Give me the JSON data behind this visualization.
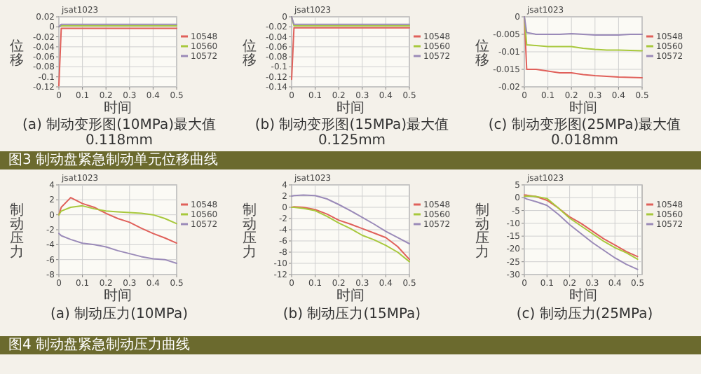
{
  "chart_data": [
    {
      "type": "line",
      "title": "(a) 制动变形图(10MPa)最大值0.118mm",
      "xlabel": "时间",
      "ylabel": "位移",
      "annotations": [
        "jsat1023"
      ],
      "x": [
        0,
        0.01,
        0.05,
        0.1,
        0.15,
        0.2,
        0.25,
        0.3,
        0.35,
        0.4,
        0.45,
        0.5
      ],
      "xlim": [
        0,
        0.5
      ],
      "xticks": [
        0,
        0.1,
        0.2,
        0.3,
        0.4,
        0.5
      ],
      "ylim": [
        -0.12,
        0.02
      ],
      "yticks": [
        -0.12,
        -0.1,
        -0.08,
        -0.06,
        -0.04,
        -0.02,
        0,
        0.02
      ],
      "grid": true,
      "legend": "right",
      "series": [
        {
          "name": "10548",
          "color": "#e0605a",
          "values": [
            -0.118,
            -0.003,
            -0.003,
            -0.003,
            -0.003,
            -0.003,
            -0.003,
            -0.003,
            -0.003,
            -0.003,
            -0.003,
            -0.003
          ]
        },
        {
          "name": "10560",
          "color": "#a8c83c",
          "values": [
            0,
            0.002,
            0.002,
            0.002,
            0.002,
            0.002,
            0.002,
            0.002,
            0.002,
            0.002,
            0.002,
            0.002
          ]
        },
        {
          "name": "10572",
          "color": "#9a8ab8",
          "values": [
            0,
            0.005,
            0.005,
            0.005,
            0.005,
            0.005,
            0.005,
            0.005,
            0.005,
            0.005,
            0.005,
            0.005
          ]
        }
      ]
    },
    {
      "type": "line",
      "title": "(b) 制动变形图(15MPa)最大值0.125mm",
      "xlabel": "时间",
      "ylabel": "位移",
      "annotations": [
        "jsat1023"
      ],
      "x": [
        0,
        0.01,
        0.05,
        0.1,
        0.15,
        0.2,
        0.25,
        0.3,
        0.35,
        0.4,
        0.45,
        0.5
      ],
      "xlim": [
        0,
        0.5
      ],
      "xticks": [
        0,
        0.1,
        0.2,
        0.3,
        0.4,
        0.5
      ],
      "ylim": [
        -0.14,
        0
      ],
      "yticks": [
        -0.14,
        -0.12,
        -0.1,
        -0.08,
        -0.06,
        -0.04,
        -0.02,
        0
      ],
      "grid": true,
      "legend": "right",
      "series": [
        {
          "name": "10548",
          "color": "#e0605a",
          "values": [
            -0.125,
            -0.022,
            -0.022,
            -0.022,
            -0.022,
            -0.022,
            -0.022,
            -0.022,
            -0.022,
            -0.022,
            -0.022,
            -0.022
          ]
        },
        {
          "name": "10560",
          "color": "#a8c83c",
          "values": [
            0,
            -0.018,
            -0.018,
            -0.018,
            -0.018,
            -0.018,
            -0.018,
            -0.018,
            -0.018,
            -0.018,
            -0.018,
            -0.018
          ]
        },
        {
          "name": "10572",
          "color": "#9a8ab8",
          "values": [
            0,
            -0.015,
            -0.015,
            -0.015,
            -0.015,
            -0.015,
            -0.015,
            -0.015,
            -0.015,
            -0.015,
            -0.015,
            -0.015
          ]
        }
      ]
    },
    {
      "type": "line",
      "title": "(c) 制动变形图(25MPa)最大值0.018mm",
      "xlabel": "时间",
      "ylabel": "位移",
      "annotations": [
        "jsat1023",
        "图3 制动盘紧急制动单元位移曲线"
      ],
      "x": [
        0,
        0.01,
        0.05,
        0.1,
        0.15,
        0.2,
        0.25,
        0.3,
        0.35,
        0.4,
        0.45,
        0.5
      ],
      "xlim": [
        0,
        0.5
      ],
      "xticks": [
        0,
        0.1,
        0.2,
        0.3,
        0.4,
        0.5
      ],
      "ylim": [
        -0.02,
        0
      ],
      "yticks": [
        -0.02,
        -0.015,
        -0.01,
        -0.005,
        0
      ],
      "grid": true,
      "legend": "right",
      "series": [
        {
          "name": "10548",
          "color": "#e0605a",
          "values": [
            0,
            -0.015,
            -0.015,
            -0.0155,
            -0.016,
            -0.016,
            -0.0165,
            -0.0168,
            -0.017,
            -0.0172,
            -0.0173,
            -0.0174
          ]
        },
        {
          "name": "10560",
          "color": "#a8c83c",
          "values": [
            0,
            -0.008,
            -0.0082,
            -0.0085,
            -0.0085,
            -0.0085,
            -0.009,
            -0.0093,
            -0.0095,
            -0.0095,
            -0.0096,
            -0.0097
          ]
        },
        {
          "name": "10572",
          "color": "#9a8ab8",
          "values": [
            0,
            -0.0045,
            -0.005,
            -0.005,
            -0.005,
            -0.0048,
            -0.005,
            -0.0052,
            -0.0052,
            -0.0052,
            -0.005,
            -0.005
          ]
        }
      ]
    },
    {
      "type": "line",
      "title": "(a) 制动压力(10MPa)",
      "xlabel": "时间",
      "ylabel": "制动压力",
      "annotations": [
        "jsat1023"
      ],
      "x": [
        0,
        0.01,
        0.05,
        0.1,
        0.15,
        0.2,
        0.25,
        0.3,
        0.35,
        0.4,
        0.45,
        0.5
      ],
      "xlim": [
        0,
        0.5
      ],
      "xticks": [
        0,
        0.1,
        0.2,
        0.3,
        0.4,
        0.5
      ],
      "ylim": [
        -8,
        4
      ],
      "yticks": [
        -8,
        -6,
        -4,
        -2,
        0,
        2,
        4
      ],
      "grid": true,
      "legend": "right",
      "series": [
        {
          "name": "10548",
          "color": "#e0605a",
          "values": [
            0,
            1,
            2.3,
            1.5,
            1,
            0.2,
            -0.5,
            -1,
            -1.8,
            -2.5,
            -3.1,
            -3.8
          ]
        },
        {
          "name": "10560",
          "color": "#a8c83c",
          "values": [
            0,
            0.5,
            1,
            1.2,
            0.8,
            0.5,
            0.4,
            0.3,
            0.2,
            0,
            -0.5,
            -1.2
          ]
        },
        {
          "name": "10572",
          "color": "#9a8ab8",
          "values": [
            -2.5,
            -2.8,
            -3.3,
            -3.8,
            -4,
            -4.3,
            -4.8,
            -5.2,
            -5.6,
            -5.9,
            -6,
            -6.5
          ]
        }
      ]
    },
    {
      "type": "line",
      "title": "(b) 制动压力(15MPa)",
      "xlabel": "时间",
      "ylabel": "制动压力",
      "annotations": [
        "jsat1023"
      ],
      "x": [
        0,
        0.01,
        0.05,
        0.1,
        0.15,
        0.2,
        0.25,
        0.3,
        0.35,
        0.4,
        0.45,
        0.5
      ],
      "xlim": [
        0,
        0.5
      ],
      "xticks": [
        0,
        0.1,
        0.2,
        0.3,
        0.4,
        0.5
      ],
      "ylim": [
        -12,
        4
      ],
      "yticks": [
        -12,
        -10,
        -8,
        -6,
        -4,
        -2,
        0,
        2,
        4
      ],
      "grid": true,
      "legend": "right",
      "series": [
        {
          "name": "10548",
          "color": "#e0605a",
          "values": [
            0,
            0.1,
            0,
            -0.4,
            -1.2,
            -2.3,
            -3,
            -3.8,
            -4.6,
            -5.4,
            -7,
            -9.3
          ]
        },
        {
          "name": "10560",
          "color": "#a8c83c",
          "values": [
            0,
            0,
            -0.2,
            -0.6,
            -1.6,
            -2.8,
            -3.8,
            -5,
            -5.8,
            -6.8,
            -8,
            -9.7
          ]
        },
        {
          "name": "10572",
          "color": "#9a8ab8",
          "values": [
            2,
            2.1,
            2.2,
            2.1,
            1.5,
            0.5,
            -0.6,
            -1.8,
            -3,
            -4.3,
            -5.4,
            -6.5
          ]
        }
      ]
    },
    {
      "type": "line",
      "title": "(c) 制动压力(25MPa)",
      "xlabel": "时间",
      "ylabel": "制动压力",
      "annotations": [
        "jsat1023",
        "图4 制动盘紧急制动压力曲线"
      ],
      "x": [
        0,
        0.01,
        0.05,
        0.1,
        0.15,
        0.2,
        0.25,
        0.3,
        0.35,
        0.4,
        0.45,
        0.5
      ],
      "xlim": [
        0,
        0.52
      ],
      "xticks": [
        0,
        0.1,
        0.2,
        0.3,
        0.4,
        0.5
      ],
      "ylim": [
        -30,
        5
      ],
      "yticks": [
        -30,
        -25,
        -20,
        -15,
        -10,
        -5,
        0,
        5
      ],
      "grid": true,
      "legend": "right",
      "series": [
        {
          "name": "10548",
          "color": "#e0605a",
          "values": [
            1,
            1,
            0.5,
            -1,
            -4,
            -7.5,
            -10,
            -13,
            -16,
            -18.5,
            -21,
            -23
          ]
        },
        {
          "name": "10560",
          "color": "#a8c83c",
          "values": [
            0.5,
            0.7,
            0.5,
            -0.3,
            -4,
            -8,
            -11,
            -14,
            -17,
            -19.5,
            -21.5,
            -24
          ]
        },
        {
          "name": "10572",
          "color": "#9a8ab8",
          "values": [
            0,
            -0.5,
            -1.5,
            -3,
            -6.5,
            -10.5,
            -14,
            -17.5,
            -20.5,
            -23.5,
            -26,
            -28
          ]
        }
      ]
    }
  ]
}
